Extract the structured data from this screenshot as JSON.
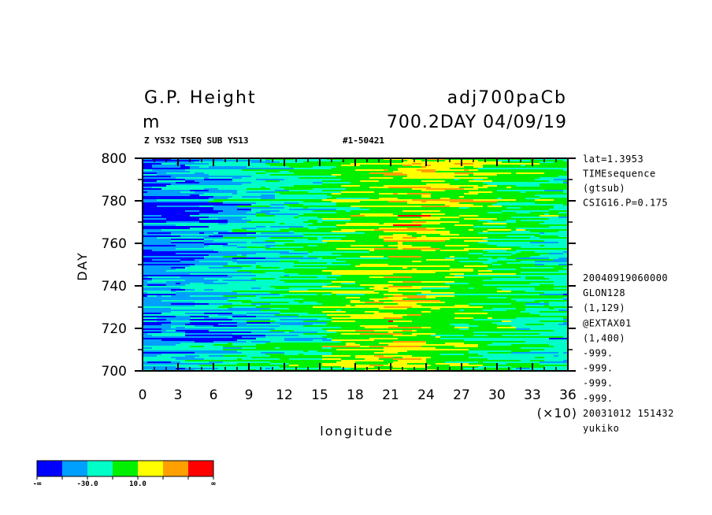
{
  "header": {
    "title_left": "G.P. Height",
    "title_right": "adj700paCb",
    "unit": "m",
    "subtitle_right": "700.2DAY 04/09/19",
    "small_left": "Z YS32 TSEQ SUB YS13",
    "small_right": "#1-50421"
  },
  "side_info": {
    "top": [
      "lat=1.3953",
      "TIMEsequence",
      "(gtsub)",
      "CSIG16.P=0.175"
    ],
    "bottom": [
      "20040919060000",
      "GLON128",
      "(1,129)",
      "@EXTAX01",
      "(1,400)",
      "-999.",
      "-999.",
      "-999.",
      "-999.",
      "20031012 151432",
      "yukiko"
    ]
  },
  "chart_data": {
    "type": "heatmap",
    "title": "G.P. Height",
    "xlabel": "longitude",
    "ylabel": "DAY",
    "x_multiplier": "(×10)",
    "xlim": [
      0,
      36
    ],
    "ylim": [
      700,
      800
    ],
    "x_ticks": [
      "0",
      "3",
      "6",
      "9",
      "12",
      "15",
      "18",
      "21",
      "24",
      "27",
      "30",
      "33",
      "36"
    ],
    "y_ticks": [
      "700",
      "720",
      "740",
      "760",
      "780",
      "800"
    ],
    "colorbar": {
      "colors": [
        "#0000ff",
        "#00a0ff",
        "#00ffc8",
        "#00f000",
        "#ffff00",
        "#ffa000",
        "#ff0000"
      ],
      "labels": [
        "-∞",
        "-30.0",
        "10.0",
        "∞"
      ]
    }
  },
  "colors": {
    "axis": "#000000",
    "background": "#ffffff"
  }
}
